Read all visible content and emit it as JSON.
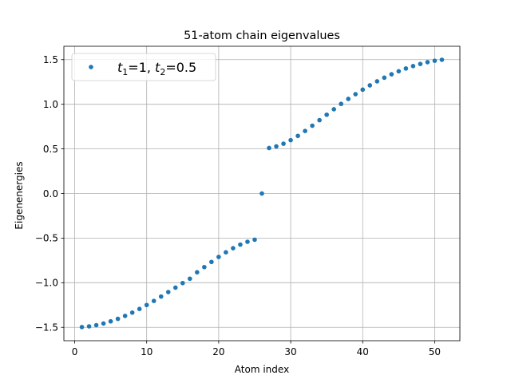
{
  "chart_data": {
    "type": "scatter",
    "title": "51-atom chain eigenvalues",
    "xlabel": "Atom index",
    "ylabel": "Eigenenergies",
    "xlim": [
      -1.5,
      53.5
    ],
    "ylim": [
      -1.65,
      1.65
    ],
    "xticks": [
      0,
      10,
      20,
      30,
      40,
      50
    ],
    "yticks": [
      -1.5,
      -1.0,
      -0.5,
      0.0,
      0.5,
      1.0,
      1.5
    ],
    "xtick_labels": [
      "0",
      "10",
      "20",
      "30",
      "40",
      "50"
    ],
    "ytick_labels": [
      "−1.5",
      "−1.0",
      "−0.5",
      "0.0",
      "0.5",
      "1.0",
      "1.5"
    ],
    "grid": true,
    "legend_position": "top-left",
    "series": [
      {
        "name": "t1=1, t2=0.5",
        "legend": {
          "t1_symbol": "t",
          "t1_sub": "1",
          "t1_value": "=1, ",
          "t2_symbol": "t",
          "t2_sub": "2",
          "t2_value": "=0.5"
        },
        "color": "#1f77b4",
        "x": [
          1,
          2,
          3,
          4,
          5,
          6,
          7,
          8,
          9,
          10,
          11,
          12,
          13,
          14,
          15,
          16,
          17,
          18,
          19,
          20,
          21,
          22,
          23,
          24,
          25,
          26,
          27,
          28,
          29,
          30,
          31,
          32,
          33,
          34,
          35,
          36,
          37,
          38,
          39,
          40,
          41,
          42,
          43,
          44,
          45,
          46,
          47,
          48,
          49,
          50,
          51
        ],
        "y": [
          -1.497,
          -1.489,
          -1.476,
          -1.457,
          -1.433,
          -1.405,
          -1.372,
          -1.335,
          -1.294,
          -1.25,
          -1.204,
          -1.155,
          -1.105,
          -1.055,
          -1.004,
          -0.955,
          -0.883,
          -0.825,
          -0.767,
          -0.711,
          -0.659,
          -0.613,
          -0.573,
          -0.541,
          -0.518,
          0.0,
          0.51,
          0.528,
          0.558,
          0.598,
          0.646,
          0.701,
          0.76,
          0.822,
          0.883,
          0.944,
          1.004,
          1.06,
          1.113,
          1.164,
          1.212,
          1.257,
          1.298,
          1.336,
          1.37,
          1.401,
          1.428,
          1.452,
          1.472,
          1.488,
          1.499
        ]
      }
    ]
  }
}
